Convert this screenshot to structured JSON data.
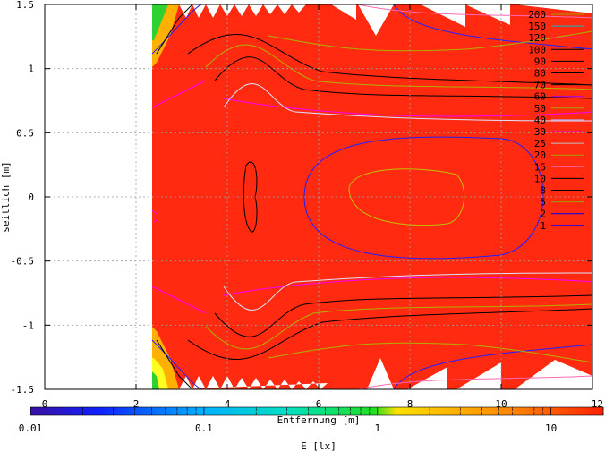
{
  "chart_data": {
    "type": "heatmap",
    "title": "",
    "xlabel": "Entfernung [m]",
    "ylabel": "seitlich [m]",
    "xlim": [
      0,
      12
    ],
    "ylim": [
      -1.5,
      1.5
    ],
    "x_ticks": [
      "0",
      "2",
      "4",
      "6",
      "8",
      "10",
      "12"
    ],
    "y_ticks": [
      "1.5",
      "1",
      "0.5",
      "0",
      "-0.5",
      "-1",
      "-1.5"
    ],
    "x_tick_values": [
      0,
      2,
      4,
      6,
      8,
      10,
      12
    ],
    "y_tick_values": [
      1.5,
      1,
      0.5,
      0,
      -0.5,
      -1,
      -1.5
    ],
    "grid": true,
    "legend_placement": "top-right",
    "contour_levels": [
      "200",
      "150",
      "120",
      "100",
      "90",
      "80",
      "70",
      "60",
      "50",
      "40",
      "30",
      "25",
      "20",
      "15",
      "10",
      "8",
      "5",
      "2",
      "1"
    ],
    "contour_colors": [
      "#a0a000",
      "#00c0c0",
      "#ff00ff",
      "#000000",
      "#000000",
      "#000000",
      "#000000",
      "#a000ff",
      "#a0a000",
      "#b0b0ff",
      "#ff00ff",
      "#c0c0c0",
      "#a0a000",
      "#ff69b4",
      "#000000",
      "#000000",
      "#a0a000",
      "#0000ff",
      "#0000ff"
    ],
    "colorbar": {
      "label": "E [lx]",
      "scale": "log",
      "range": [
        0.01,
        20
      ],
      "tick_labels": [
        "0.01",
        "0.1",
        "1",
        "10"
      ],
      "tick_values": [
        0.01,
        0.1,
        1,
        10
      ]
    },
    "data_region": {
      "x_start": 2.35,
      "x_end": 11.85,
      "y_start": -1.5,
      "y_end": 1.5
    },
    "fill_color": "#ff2a10"
  }
}
